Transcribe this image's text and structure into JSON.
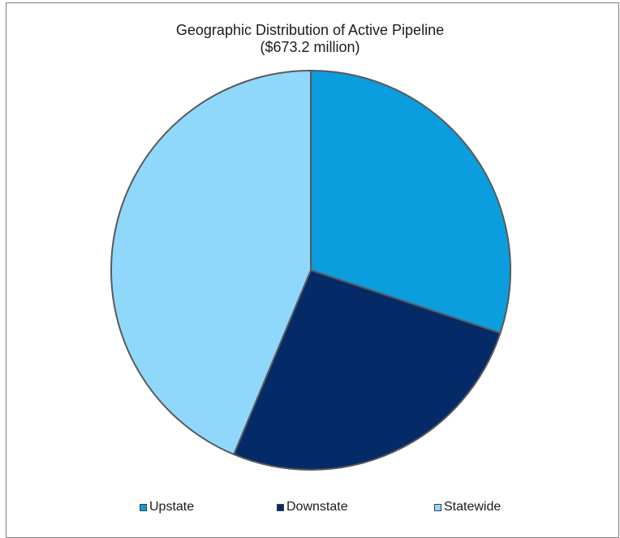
{
  "chart_data": {
    "type": "pie",
    "title": "Geographic Distribution of Active Pipeline",
    "subtitle": "($673.2 million)",
    "categories": [
      "Upstate",
      "Downstate",
      "Statewide"
    ],
    "values": [
      30.1,
      26.2,
      43.7
    ],
    "colors": [
      "#0b9ddd",
      "#052a68",
      "#8fd8fb"
    ],
    "legend_position": "bottom"
  }
}
